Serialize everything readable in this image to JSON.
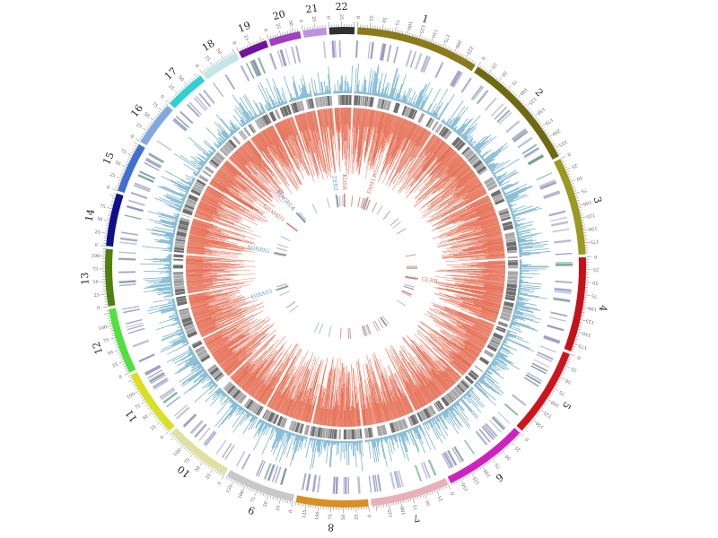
{
  "chromosomes": [
    {
      "label": "1",
      "length": 249,
      "color": "#8a7a1a"
    },
    {
      "label": "2",
      "length": 243,
      "color": "#6e6a12"
    },
    {
      "label": "3",
      "length": 198,
      "color": "#9a9a20"
    },
    {
      "label": "4",
      "length": 191,
      "color": "#c8101a"
    },
    {
      "label": "5",
      "length": 181,
      "color": "#d0141e"
    },
    {
      "label": "6",
      "length": 171,
      "color": "#d020c0"
    },
    {
      "label": "7",
      "length": 159,
      "color": "#e8b0b8"
    },
    {
      "label": "8",
      "length": 146,
      "color": "#d89020"
    },
    {
      "label": "9",
      "length": 141,
      "color": "#c8c8c8"
    },
    {
      "label": "10",
      "length": 135,
      "color": "#e0e0a0"
    },
    {
      "label": "11",
      "length": 135,
      "color": "#d8e020"
    },
    {
      "label": "12",
      "length": 133,
      "color": "#50e040"
    },
    {
      "label": "13",
      "length": 115,
      "color": "#508010"
    },
    {
      "label": "14",
      "length": 107,
      "color": "#10108a"
    },
    {
      "label": "15",
      "length": 102,
      "color": "#4070d0"
    },
    {
      "label": "16",
      "length": 90,
      "color": "#80a8e0"
    },
    {
      "label": "17",
      "length": 83,
      "color": "#30d0d0"
    },
    {
      "label": "18",
      "length": 78,
      "color": "#c0e8e8"
    },
    {
      "label": "19",
      "length": 59,
      "color": "#7010a0"
    },
    {
      "label": "20",
      "length": 64,
      "color": "#a040c0"
    },
    {
      "label": "21",
      "length": 47,
      "color": "#c090e0"
    },
    {
      "label": "22",
      "length": 51,
      "color": "#303030"
    }
  ],
  "genes": [
    {
      "label": "FAM13C",
      "color": "#d07060",
      "chrom": "1"
    },
    {
      "label": "KDSR",
      "color": "#d07060",
      "chrom": "22"
    },
    {
      "label": "ZEB2",
      "color": "#60a0c0",
      "chrom": "21"
    },
    {
      "label": "MAGEC4",
      "color": "#6080c0",
      "chrom": "17"
    },
    {
      "label": "GRAMD1",
      "color": "#d07060",
      "chrom": "16"
    },
    {
      "label": "SORBS2",
      "color": "#60a0c0",
      "chrom": "14"
    },
    {
      "label": "DIRAS3",
      "color": "#60a0c0",
      "chrom": "12"
    },
    {
      "label": "GLRB",
      "color": "#d07060",
      "chrom": "4"
    }
  ],
  "track_colors": {
    "bands_purple": "#9090c0",
    "bands_green": "#50a070",
    "histogram_blue": "#4a9ac0",
    "blocks_gray": "#808080",
    "histogram_red": "#e05030"
  }
}
